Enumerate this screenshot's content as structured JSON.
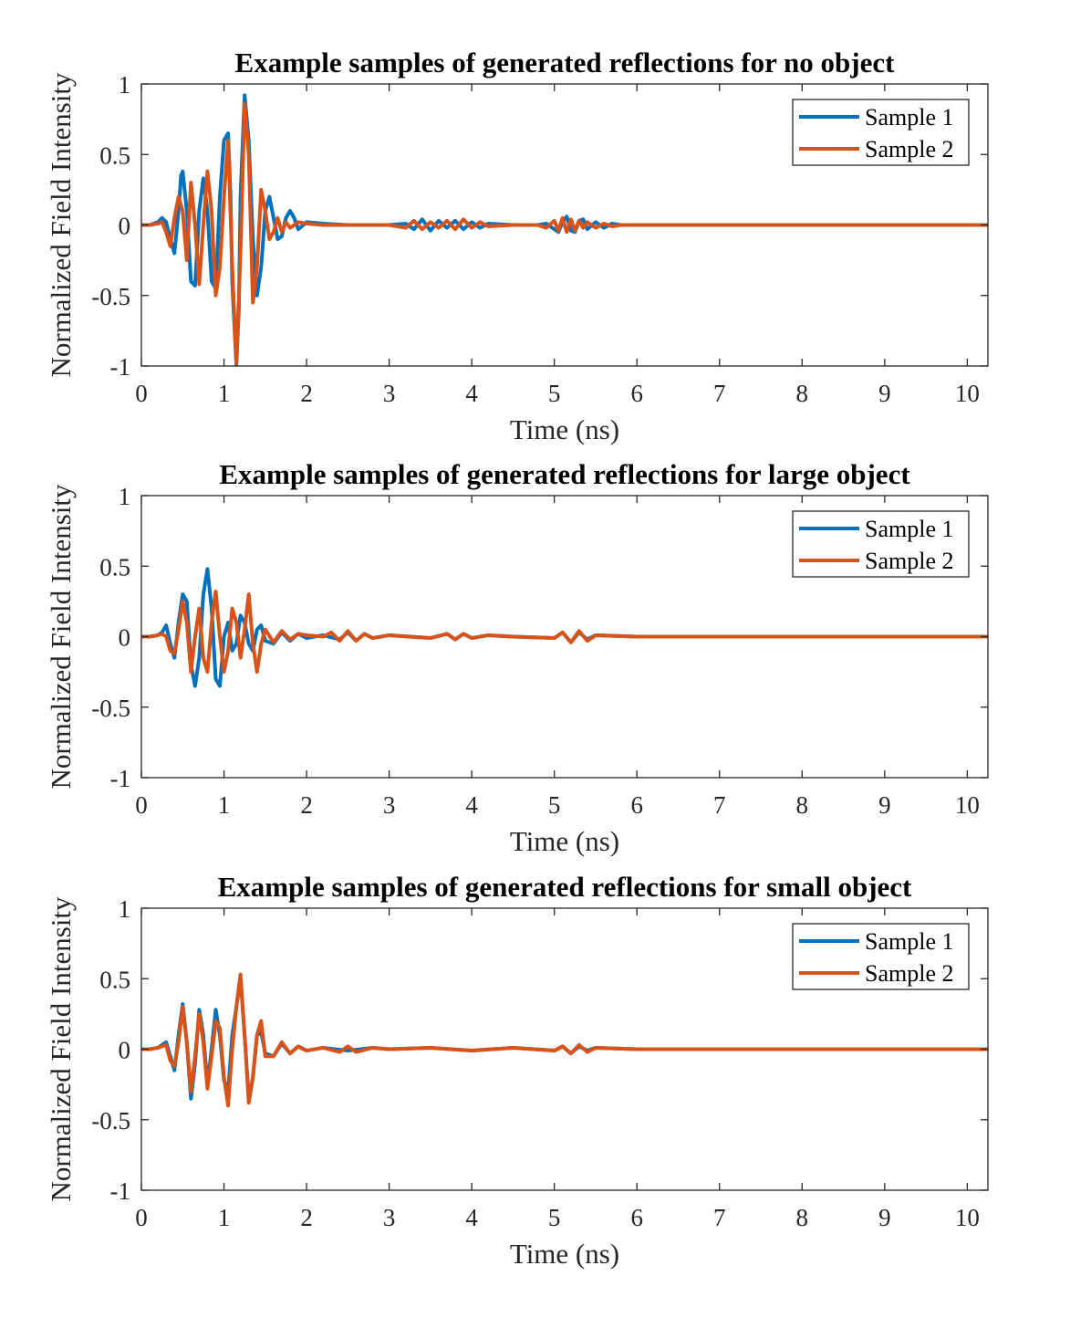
{
  "chart_data": [
    {
      "type": "line",
      "title": "Example samples of generated reflections for no object",
      "xlabel": "Time (ns)",
      "ylabel": "Normalized Field Intensity",
      "xlim": [
        0,
        10.25
      ],
      "ylim": [
        -1,
        1
      ],
      "xticks": [
        "0",
        "1",
        "2",
        "3",
        "4",
        "5",
        "6",
        "7",
        "8",
        "9",
        "10"
      ],
      "yticks": [
        "-1",
        "-0.5",
        "0",
        "0.5",
        "1"
      ],
      "grid": false,
      "legend_position": "top-right",
      "series": [
        {
          "name": "Sample 1",
          "color": "#0072BD",
          "x": [
            0,
            0.1,
            0.2,
            0.25,
            0.3,
            0.35,
            0.4,
            0.45,
            0.48,
            0.5,
            0.55,
            0.6,
            0.65,
            0.7,
            0.75,
            0.8,
            0.85,
            0.9,
            0.95,
            1.0,
            1.05,
            1.08,
            1.1,
            1.15,
            1.18,
            1.2,
            1.25,
            1.3,
            1.35,
            1.4,
            1.45,
            1.5,
            1.55,
            1.6,
            1.65,
            1.7,
            1.75,
            1.8,
            1.85,
            1.9,
            2.0,
            2.2,
            2.5,
            3.0,
            3.2,
            3.3,
            3.4,
            3.5,
            3.6,
            3.7,
            3.8,
            3.9,
            4.0,
            4.1,
            4.2,
            4.5,
            4.8,
            4.9,
            5.0,
            5.05,
            5.1,
            5.15,
            5.2,
            5.25,
            5.3,
            5.35,
            5.4,
            5.5,
            5.6,
            5.7,
            5.8,
            6.0,
            6.5,
            7.0,
            8.0,
            9.0,
            10.25
          ],
          "y": [
            0,
            0,
            0.02,
            0.05,
            0.02,
            -0.1,
            -0.2,
            0.1,
            0.35,
            0.38,
            0.1,
            -0.4,
            -0.43,
            0.1,
            0.33,
            0.1,
            -0.4,
            -0.45,
            0.2,
            0.6,
            0.65,
            0.2,
            -0.4,
            -1.0,
            -0.6,
            0.2,
            0.92,
            0.6,
            -0.1,
            -0.5,
            -0.3,
            0.1,
            0.2,
            0.05,
            -0.1,
            -0.08,
            0.05,
            0.1,
            0.05,
            -0.03,
            0.02,
            0.01,
            0,
            0,
            0.01,
            -0.03,
            0.04,
            -0.04,
            0.03,
            -0.02,
            0.03,
            -0.03,
            0.02,
            -0.02,
            0.01,
            0,
            0,
            0.01,
            -0.03,
            -0.05,
            0.02,
            0.06,
            -0.04,
            -0.05,
            0.03,
            0.04,
            -0.03,
            0.02,
            -0.02,
            0.01,
            0,
            0,
            0,
            0,
            0,
            0,
            0
          ]
        },
        {
          "name": "Sample 2",
          "color": "#D95319",
          "x": [
            0,
            0.1,
            0.2,
            0.25,
            0.3,
            0.35,
            0.4,
            0.45,
            0.5,
            0.55,
            0.6,
            0.65,
            0.7,
            0.75,
            0.8,
            0.85,
            0.9,
            0.95,
            1.0,
            1.05,
            1.1,
            1.15,
            1.2,
            1.25,
            1.3,
            1.35,
            1.4,
            1.45,
            1.5,
            1.55,
            1.6,
            1.65,
            1.7,
            1.75,
            1.8,
            1.9,
            2.0,
            2.2,
            2.5,
            3.0,
            3.2,
            3.3,
            3.4,
            3.5,
            3.6,
            3.7,
            3.8,
            3.9,
            4.0,
            4.1,
            4.2,
            4.5,
            4.8,
            4.9,
            5.0,
            5.05,
            5.1,
            5.15,
            5.2,
            5.25,
            5.3,
            5.35,
            5.4,
            5.5,
            5.6,
            5.7,
            5.8,
            6.0,
            6.5,
            7.0,
            8.0,
            9.0,
            10.25
          ],
          "y": [
            0,
            0,
            0.01,
            0.02,
            -0.05,
            -0.15,
            0.05,
            0.2,
            0.1,
            -0.25,
            0.3,
            0.0,
            -0.42,
            0.0,
            0.38,
            0.1,
            -0.5,
            -0.3,
            0.2,
            0.6,
            -0.3,
            -0.98,
            -0.2,
            0.86,
            0.5,
            -0.55,
            -0.3,
            0.25,
            0.1,
            -0.1,
            -0.05,
            0.05,
            -0.05,
            0.02,
            -0.02,
            0.02,
            0.01,
            0,
            0,
            0,
            -0.02,
            0.03,
            -0.03,
            0.02,
            -0.02,
            0.03,
            -0.03,
            0.04,
            -0.02,
            0.02,
            -0.01,
            0,
            0,
            -0.02,
            0.03,
            -0.04,
            0.05,
            -0.05,
            0.04,
            -0.04,
            0.03,
            -0.02,
            0.02,
            -0.02,
            0.01,
            -0.01,
            0,
            0,
            0,
            0,
            0,
            0,
            0
          ]
        }
      ]
    },
    {
      "type": "line",
      "title": "Example samples of generated reflections for large object",
      "xlabel": "Time (ns)",
      "ylabel": "Normalized Field Intensity",
      "xlim": [
        0,
        10.25
      ],
      "ylim": [
        -1,
        1
      ],
      "xticks": [
        "0",
        "1",
        "2",
        "3",
        "4",
        "5",
        "6",
        "7",
        "8",
        "9",
        "10"
      ],
      "yticks": [
        "-1",
        "-0.5",
        "0",
        "0.5",
        "1"
      ],
      "grid": false,
      "legend_position": "top-right",
      "series": [
        {
          "name": "Sample 1",
          "color": "#0072BD",
          "x": [
            0,
            0.1,
            0.2,
            0.25,
            0.3,
            0.35,
            0.4,
            0.45,
            0.5,
            0.55,
            0.6,
            0.65,
            0.7,
            0.75,
            0.8,
            0.85,
            0.9,
            0.95,
            1.0,
            1.05,
            1.1,
            1.15,
            1.2,
            1.25,
            1.3,
            1.35,
            1.4,
            1.45,
            1.5,
            1.6,
            1.7,
            1.8,
            1.9,
            2.0,
            2.2,
            2.4,
            2.5,
            2.6,
            2.7,
            2.8,
            3.0,
            3.5,
            3.7,
            3.8,
            3.9,
            4.0,
            4.2,
            4.5,
            5.0,
            5.1,
            5.2,
            5.3,
            5.4,
            5.5,
            6.0,
            7.0,
            8.0,
            9.0,
            10.25
          ],
          "y": [
            0,
            0,
            0.01,
            0.03,
            0.08,
            -0.05,
            -0.15,
            0.1,
            0.3,
            0.25,
            -0.2,
            -0.35,
            -0.15,
            0.3,
            0.48,
            0.2,
            -0.3,
            -0.35,
            0.0,
            0.1,
            -0.1,
            -0.05,
            0.15,
            0.1,
            -0.05,
            -0.1,
            0.05,
            0.08,
            -0.03,
            -0.05,
            0.03,
            -0.03,
            0.02,
            -0.01,
            0.01,
            -0.02,
            0.03,
            -0.03,
            0.02,
            -0.01,
            0.01,
            -0.01,
            0.02,
            -0.02,
            0.02,
            -0.01,
            0.01,
            0,
            -0.01,
            0.03,
            -0.04,
            0.03,
            -0.02,
            0.01,
            0,
            0,
            0,
            0,
            0
          ]
        },
        {
          "name": "Sample 2",
          "color": "#D95319",
          "x": [
            0,
            0.1,
            0.2,
            0.25,
            0.3,
            0.35,
            0.4,
            0.45,
            0.5,
            0.55,
            0.6,
            0.65,
            0.7,
            0.75,
            0.8,
            0.85,
            0.9,
            0.95,
            1.0,
            1.05,
            1.1,
            1.15,
            1.2,
            1.25,
            1.3,
            1.35,
            1.4,
            1.45,
            1.5,
            1.6,
            1.7,
            1.8,
            1.9,
            2.0,
            2.2,
            2.3,
            2.4,
            2.5,
            2.6,
            2.7,
            2.8,
            3.0,
            3.5,
            3.7,
            3.8,
            3.9,
            4.0,
            4.2,
            4.5,
            5.0,
            5.1,
            5.2,
            5.3,
            5.4,
            5.5,
            6.0,
            7.0,
            8.0,
            9.0,
            10.25
          ],
          "y": [
            0,
            0,
            0.01,
            0.02,
            0.0,
            -0.1,
            -0.12,
            0.05,
            0.25,
            0.1,
            -0.25,
            0.0,
            0.2,
            -0.15,
            -0.25,
            0.1,
            0.32,
            0.0,
            -0.25,
            -0.1,
            0.2,
            0.1,
            -0.15,
            0.05,
            0.3,
            -0.05,
            -0.25,
            -0.05,
            0.05,
            -0.04,
            0.04,
            -0.02,
            0.02,
            0.01,
            0.0,
            0.03,
            -0.03,
            0.04,
            -0.03,
            0.02,
            -0.01,
            0.01,
            -0.01,
            0.02,
            -0.02,
            0.02,
            -0.01,
            0.01,
            0,
            -0.01,
            0.03,
            -0.04,
            0.04,
            -0.03,
            0.01,
            0,
            0,
            0,
            0,
            0
          ]
        }
      ]
    },
    {
      "type": "line",
      "title": "Example samples of generated reflections for small object",
      "xlabel": "Time (ns)",
      "ylabel": "Normalized Field Intensity",
      "xlim": [
        0,
        10.25
      ],
      "ylim": [
        -1,
        1
      ],
      "xticks": [
        "0",
        "1",
        "2",
        "3",
        "4",
        "5",
        "6",
        "7",
        "8",
        "9",
        "10"
      ],
      "yticks": [
        "-1",
        "-0.5",
        "0",
        "0.5",
        "1"
      ],
      "grid": false,
      "legend_position": "top-right",
      "series": [
        {
          "name": "Sample 1",
          "color": "#0072BD",
          "x": [
            0,
            0.1,
            0.2,
            0.25,
            0.3,
            0.35,
            0.4,
            0.45,
            0.5,
            0.55,
            0.6,
            0.65,
            0.7,
            0.75,
            0.8,
            0.85,
            0.9,
            0.95,
            1.0,
            1.05,
            1.1,
            1.15,
            1.2,
            1.25,
            1.3,
            1.35,
            1.4,
            1.45,
            1.5,
            1.6,
            1.7,
            1.8,
            1.9,
            2.0,
            2.2,
            2.5,
            2.8,
            3.0,
            3.5,
            4.0,
            4.5,
            5.0,
            5.1,
            5.2,
            5.3,
            5.4,
            5.5,
            6.0,
            7.0,
            8.0,
            9.0,
            10.25
          ],
          "y": [
            0,
            0,
            0.01,
            0.03,
            0.05,
            -0.05,
            -0.15,
            0.1,
            0.32,
            0.05,
            -0.35,
            -0.1,
            0.28,
            0.1,
            -0.25,
            0.0,
            0.28,
            0.1,
            -0.22,
            -0.3,
            0.1,
            0.3,
            0.5,
            0.1,
            -0.35,
            -0.2,
            0.1,
            0.12,
            -0.03,
            -0.05,
            0.04,
            -0.03,
            0.02,
            -0.01,
            0.01,
            -0.01,
            0.01,
            0,
            0.01,
            -0.01,
            0.01,
            -0.01,
            0.02,
            -0.03,
            0.02,
            -0.01,
            0.01,
            0,
            0,
            0,
            0,
            0
          ]
        },
        {
          "name": "Sample 2",
          "color": "#D95319",
          "x": [
            0,
            0.1,
            0.2,
            0.25,
            0.3,
            0.35,
            0.4,
            0.45,
            0.5,
            0.55,
            0.6,
            0.65,
            0.7,
            0.75,
            0.8,
            0.85,
            0.9,
            0.95,
            1.0,
            1.05,
            1.1,
            1.15,
            1.2,
            1.25,
            1.3,
            1.35,
            1.4,
            1.45,
            1.5,
            1.6,
            1.7,
            1.8,
            1.9,
            2.0,
            2.2,
            2.4,
            2.5,
            2.6,
            2.8,
            3.0,
            3.5,
            4.0,
            4.5,
            5.0,
            5.1,
            5.2,
            5.3,
            5.4,
            5.5,
            6.0,
            7.0,
            8.0,
            9.0,
            10.25
          ],
          "y": [
            0,
            0,
            0.01,
            0.02,
            0.03,
            -0.08,
            -0.12,
            0.05,
            0.3,
            0.05,
            -0.3,
            -0.05,
            0.25,
            0.05,
            -0.28,
            -0.05,
            0.2,
            0.15,
            -0.2,
            -0.4,
            0.0,
            0.3,
            0.53,
            0.1,
            -0.38,
            -0.2,
            0.1,
            0.2,
            -0.05,
            -0.05,
            0.05,
            -0.03,
            0.02,
            -0.01,
            0.01,
            -0.02,
            0.02,
            -0.02,
            0.01,
            0,
            0.01,
            -0.01,
            0.01,
            -0.01,
            0.02,
            -0.03,
            0.03,
            -0.02,
            0.01,
            0,
            0,
            0,
            0,
            0
          ]
        }
      ]
    }
  ]
}
